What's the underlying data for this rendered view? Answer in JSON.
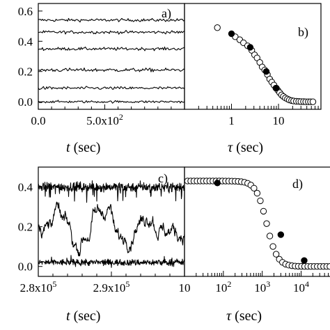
{
  "chart_data": [
    {
      "panel": "a)",
      "type": "line",
      "xlabel_var": "t",
      "xlabel_unit": "(sec)",
      "xlim": [
        0,
        1100
      ],
      "ylim": [
        -0.05,
        0.65
      ],
      "yticks": [
        {
          "v": 0.0,
          "label": "0.0"
        },
        {
          "v": 0.2,
          "label": "0.2"
        },
        {
          "v": 0.4,
          "label": "0.4"
        },
        {
          "v": 0.6,
          "label": "0.6"
        }
      ],
      "xticks": [
        {
          "v": 0,
          "label": "0.0"
        },
        {
          "v": 500,
          "label": "5.0x10",
          "sup": "2"
        }
      ],
      "x_minor": [
        100,
        200,
        300,
        400,
        600,
        700,
        800,
        900,
        1000
      ],
      "series": [
        {
          "mean": 0.54,
          "noise": 0.005
        },
        {
          "mean": 0.46,
          "noise": 0.005
        },
        {
          "mean": 0.35,
          "noise": 0.005
        },
        {
          "mean": 0.21,
          "noise": 0.006
        },
        {
          "mean": 0.09,
          "noise": 0.005
        },
        {
          "mean": 0.0,
          "noise": 0.004
        }
      ]
    },
    {
      "panel": "b)",
      "type": "scatter",
      "xlabel_var": "τ",
      "xlabel_unit": "(sec)",
      "xscale": "log",
      "xlim": [
        0.1,
        80
      ],
      "ylim": [
        -0.05,
        0.65
      ],
      "xticks": [
        {
          "v": 1,
          "label": "1"
        },
        {
          "v": 10,
          "label": "10"
        }
      ],
      "open_points": [
        [
          0.5,
          0.49
        ],
        [
          1.2,
          0.43
        ],
        [
          1.5,
          0.41
        ],
        [
          1.8,
          0.39
        ],
        [
          2.2,
          0.37
        ],
        [
          2.7,
          0.34
        ],
        [
          3.1,
          0.31
        ],
        [
          3.5,
          0.29
        ],
        [
          4.0,
          0.26
        ],
        [
          4.5,
          0.23
        ],
        [
          5.1,
          0.21
        ],
        [
          5.8,
          0.18
        ],
        [
          6.5,
          0.15
        ],
        [
          7.2,
          0.13
        ],
        [
          8.0,
          0.11
        ],
        [
          8.8,
          0.09
        ],
        [
          9.7,
          0.075
        ],
        [
          10.6,
          0.06
        ],
        [
          11.6,
          0.045
        ],
        [
          12.7,
          0.035
        ],
        [
          14,
          0.025
        ],
        [
          15.5,
          0.018
        ],
        [
          17,
          0.012
        ],
        [
          19,
          0.008
        ],
        [
          21,
          0.005
        ],
        [
          24,
          0.003
        ],
        [
          27,
          0.002
        ],
        [
          30,
          0.001
        ],
        [
          34,
          0.001
        ],
        [
          38,
          0.0
        ],
        [
          43,
          0.0
        ],
        [
          48,
          0.0
        ],
        [
          54,
          0.0
        ]
      ],
      "filled_points": [
        [
          1.0,
          0.45
        ],
        [
          2.5,
          0.36
        ],
        [
          5.5,
          0.2
        ],
        [
          9.0,
          0.09
        ]
      ]
    },
    {
      "panel": "c)",
      "type": "line",
      "xlabel_var": "t",
      "xlabel_unit": "(sec)",
      "xlim": [
        280000,
        300000
      ],
      "ylim": [
        -0.05,
        0.5
      ],
      "yticks": [
        {
          "v": 0.0,
          "label": "0.0"
        },
        {
          "v": 0.2,
          "label": "0.2"
        },
        {
          "v": 0.4,
          "label": "0.4"
        }
      ],
      "xticks": [
        {
          "v": 280000,
          "label": "2.8x10",
          "sup": "5"
        },
        {
          "v": 290000,
          "label": "2.9x10",
          "sup": "5"
        }
      ],
      "x_minor": [
        282000,
        284000,
        286000,
        288000,
        292000,
        294000,
        296000,
        298000
      ],
      "series": [
        {
          "shape": "high",
          "mean": 0.4
        },
        {
          "shape": "switching",
          "mean": 0.2
        },
        {
          "shape": "low",
          "mean": 0.02
        }
      ]
    },
    {
      "panel": "d)",
      "type": "scatter",
      "xlabel_var": "τ",
      "xlabel_unit": "(sec)",
      "xscale": "log",
      "xlim": [
        10,
        60000
      ],
      "ylim": [
        -0.05,
        0.5
      ],
      "xticks": [
        {
          "v": 10,
          "label": "10"
        },
        {
          "v": 100,
          "label": "10",
          "sup": "2"
        },
        {
          "v": 1000,
          "label": "10",
          "sup": "3"
        },
        {
          "v": 10000,
          "label": "10",
          "sup": "4"
        }
      ],
      "curve": {
        "top": 0.43,
        "bottom": 0.0,
        "x0": 1300,
        "width": 0.3,
        "n": 46,
        "from": 12,
        "to": 55000
      },
      "filled_points": [
        [
          70,
          0.42
        ],
        [
          3000,
          0.16
        ],
        [
          12000,
          0.03
        ]
      ]
    }
  ]
}
